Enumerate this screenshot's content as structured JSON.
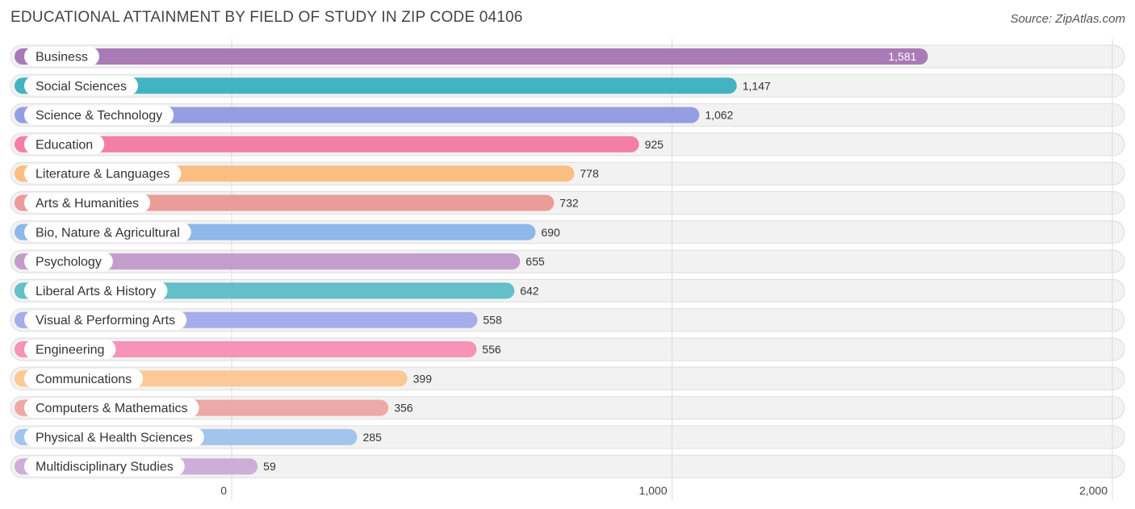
{
  "chart_data": {
    "type": "bar",
    "orientation": "horizontal",
    "title": "EDUCATIONAL ATTAINMENT BY FIELD OF STUDY IN ZIP CODE 04106",
    "source": "Source: ZipAtlas.com",
    "categories": [
      "Business",
      "Social Sciences",
      "Science & Technology",
      "Education",
      "Literature & Languages",
      "Arts & Humanities",
      "Bio, Nature & Agricultural",
      "Psychology",
      "Liberal Arts & History",
      "Visual & Performing Arts",
      "Engineering",
      "Communications",
      "Computers & Mathematics",
      "Physical & Health Sciences",
      "Multidisciplinary Studies"
    ],
    "values": [
      1581,
      1147,
      1062,
      925,
      778,
      732,
      690,
      655,
      642,
      558,
      556,
      399,
      356,
      285,
      59
    ],
    "value_labels": [
      "1,581",
      "1,147",
      "1,062",
      "925",
      "778",
      "732",
      "690",
      "655",
      "642",
      "558",
      "556",
      "399",
      "356",
      "285",
      "59"
    ],
    "colors": [
      "#a87bb6",
      "#43b3c1",
      "#949fe3",
      "#f47fa6",
      "#fbbe82",
      "#ea9c98",
      "#8eb8e8",
      "#c39dcc",
      "#63bfc8",
      "#a5aeea",
      "#f693b6",
      "#fcc996",
      "#eda9a6",
      "#a3c4ec",
      "#cdaed8"
    ],
    "xlim": [
      0,
      2000
    ],
    "xticks": [
      0,
      1000,
      2000
    ],
    "xtick_labels": [
      "0",
      "1,000",
      "2,000"
    ],
    "grid": true,
    "xlabel": "",
    "ylabel": ""
  }
}
